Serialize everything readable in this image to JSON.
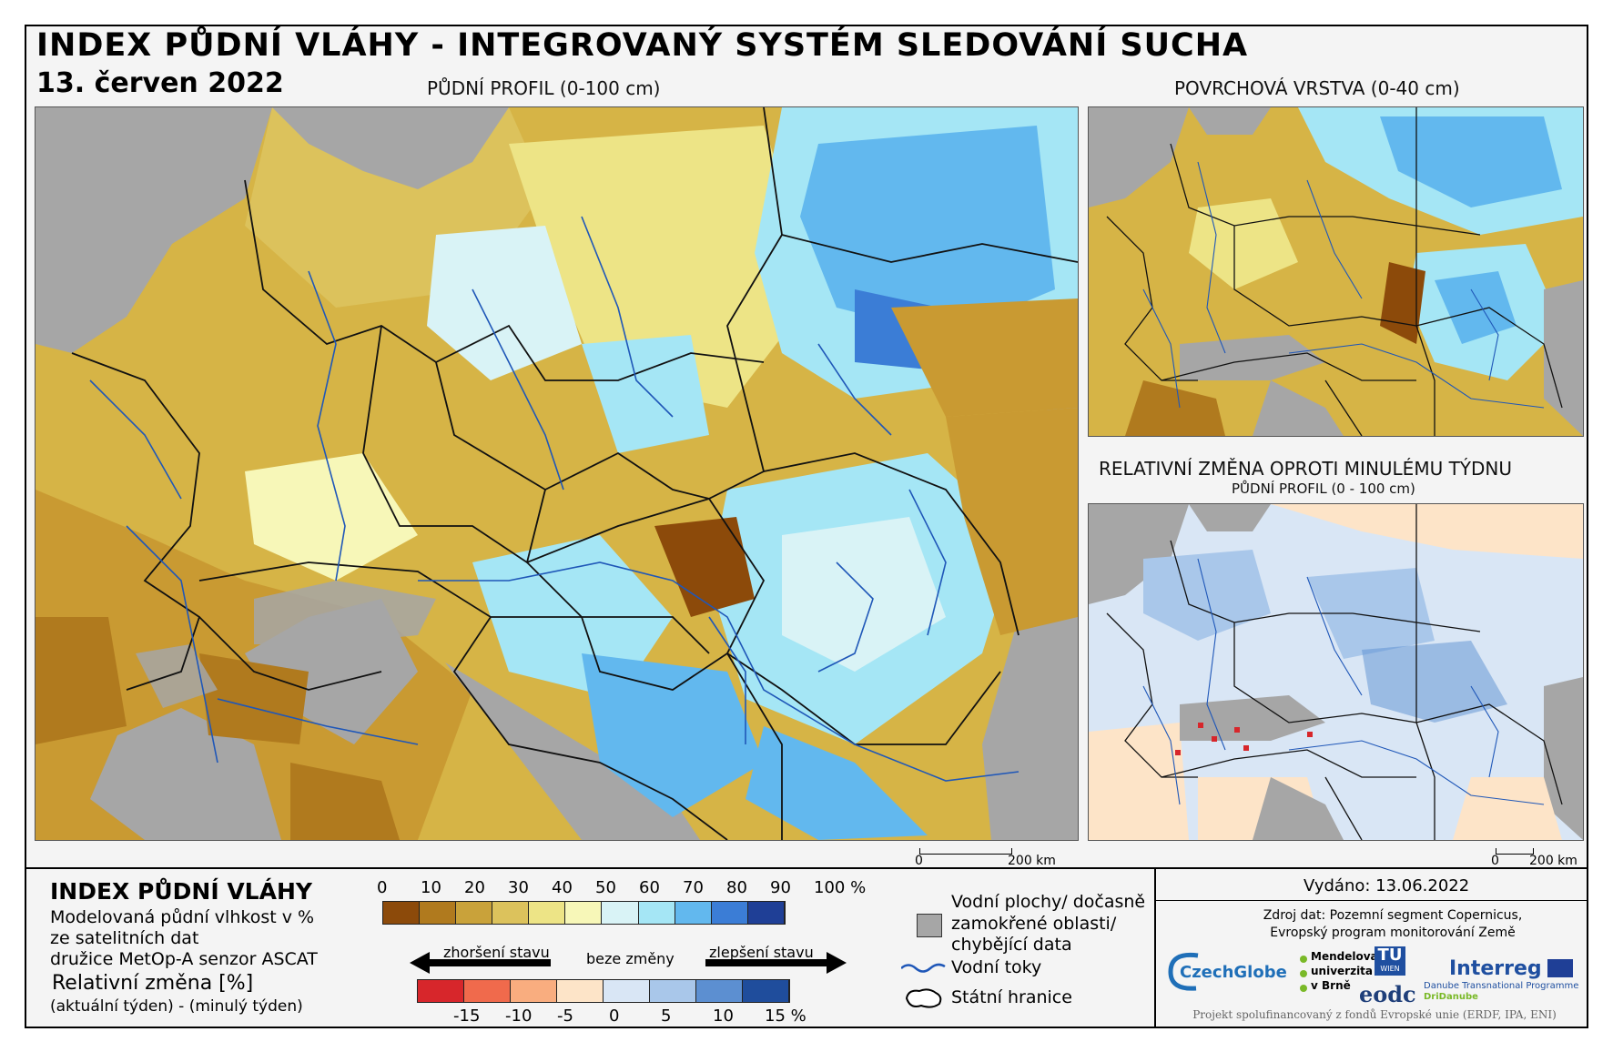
{
  "title": "INDEX PŮDNÍ VLÁHY - INTEGROVANÝ SYSTÉM SLEDOVÁNÍ SUCHA",
  "date": "13. červen 2022",
  "maps": {
    "main_label": "PŮDNÍ PROFIL (0-100 cm)",
    "surface_label": "POVRCHOVÁ VRSTVA (0-40 cm)",
    "change_label": "RELATIVNÍ ZMĚNA OPROTI MINULÉMU TÝDNU",
    "change_sublabel": "PŮDNÍ PROFIL (0 - 100 cm)"
  },
  "scalebar": {
    "start": "0",
    "end": "200 km"
  },
  "legend": {
    "title": "INDEX PŮDNÍ VLÁHY",
    "desc1": "Modelovaná půdní vlhkost v %",
    "desc2": "ze satelitních dat",
    "desc3": "družice MetOp-A senzor ASCAT",
    "change_title": "Relativní změna [%]",
    "change_desc": "(aktuální týden) - (minulý týden)",
    "index_ticks": [
      "0",
      "10",
      "20",
      "30",
      "40",
      "50",
      "60",
      "70",
      "80",
      "90",
      "100 %"
    ],
    "index_colors": [
      "#8c4a0a",
      "#b07a1e",
      "#c9a23a",
      "#dcc25c",
      "#ede486",
      "#f7f7b8",
      "#d9f3f6",
      "#a5e6f5",
      "#62b8ee",
      "#3b7dd6",
      "#1f3f96"
    ],
    "change_ticks": [
      "-15",
      "-10",
      "-5",
      "0",
      "5",
      "10",
      "15 %"
    ],
    "change_colors": [
      "#d7262b",
      "#f06a4c",
      "#f9ad7f",
      "#fde4c8",
      "#d9e6f5",
      "#a9c7ea",
      "#5c8fd1",
      "#1f4d9c"
    ],
    "worse_label": "zhoršení stavu",
    "nochange_label": "beze změny",
    "better_label": "zlepšení stavu",
    "water_label_1": "Vodní plochy/ dočasně",
    "water_label_2": "zamokřené oblasti/",
    "water_label_3": "chybějící data",
    "rivers_label": "Vodní toky",
    "borders_label": "Státní hranice",
    "colors": {
      "missing": "#a6a6a6",
      "river": "#1f57b8",
      "border": "#111111"
    }
  },
  "issued": "Vydáno: 13.06.2022",
  "source1": "Zdroj dat: Pozemní segment Copernicus,",
  "source2": "Evropský program monitorování Země",
  "logos": {
    "czechglobe": "CzechGlobe",
    "mendel1": "Mendelova",
    "mendel2": "univerzita",
    "mendel3": "v Brně",
    "tu": "TU",
    "tu_sub": "WIEN",
    "eodc": "eodc",
    "interreg": "Interreg",
    "interreg_sub1": "Danube Transnational Programme",
    "interreg_sub2": "DriDanube"
  },
  "funding": "Projekt spolufinancovaný z fondů Evropské unie (ERDF, IPA, ENI)"
}
